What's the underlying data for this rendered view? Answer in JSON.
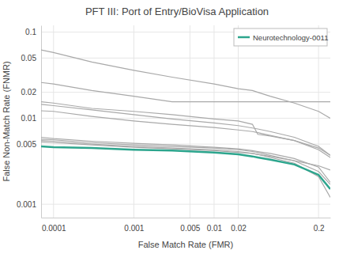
{
  "chart_data": {
    "type": "line",
    "title": "PFT III: Port of Entry/BioVisa Application",
    "x_label": "False Match Rate (FMR)",
    "y_label": "False Non-Match Rate (FNMR)",
    "log": true,
    "grid": true,
    "legend": "top-right",
    "xlim": [
      7e-05,
      0.28
    ],
    "ylim": [
      0.0007,
      0.12
    ],
    "xticks": [
      0.0001,
      0.001,
      0.005,
      0.01,
      0.02,
      0.2
    ],
    "yticks": [
      0.001,
      0.005,
      0.01,
      0.02,
      0.05,
      0.1
    ],
    "x": [
      7e-05,
      0.0001,
      0.0003,
      0.001,
      0.003,
      0.01,
      0.02,
      0.03,
      0.035,
      0.05,
      0.1,
      0.2,
      0.28
    ],
    "series": [
      {
        "color": "#a9a9a9",
        "values": [
          0.062,
          0.058,
          0.045,
          0.036,
          0.03,
          0.025,
          0.022,
          0.021,
          0.02,
          0.018,
          0.015,
          0.012,
          0.01
        ]
      },
      {
        "color": "#a9a9a9",
        "values": [
          0.026,
          0.025,
          0.021,
          0.018,
          0.0155,
          0.0155,
          0.0155,
          0.0155,
          0.0155,
          0.0155,
          0.0155,
          0.0155,
          0.0155
        ]
      },
      {
        "color": "#a9a9a9",
        "values": [
          0.0155,
          0.015,
          0.013,
          0.012,
          0.011,
          0.0098,
          0.0093,
          0.0085,
          0.0065,
          0.0062,
          0.0055,
          0.0045,
          0.0037
        ]
      },
      {
        "color": "#a9a9a9",
        "values": [
          0.0145,
          0.014,
          0.0125,
          0.011,
          0.0098,
          0.0088,
          0.0082,
          0.0077,
          0.0075,
          0.007,
          0.006,
          0.0047,
          0.0037
        ]
      },
      {
        "color": "#a9a9a9",
        "values": [
          0.0122,
          0.012,
          0.0105,
          0.0093,
          0.0085,
          0.0078,
          0.0073,
          0.007,
          0.0068,
          0.0063,
          0.0055,
          0.0043,
          0.0035
        ]
      },
      {
        "color": "#a9a9a9",
        "values": [
          0.006,
          0.0058,
          0.0054,
          0.0051,
          0.0049,
          0.0046,
          0.0044,
          0.0042,
          0.0041,
          0.0039,
          0.0034,
          0.0027,
          0.0018
        ]
      },
      {
        "color": "#a9a9a9",
        "values": [
          0.0057,
          0.0056,
          0.0052,
          0.0049,
          0.0047,
          0.0045,
          0.0043,
          0.0041,
          0.004,
          0.0037,
          0.0032,
          0.0024,
          0.0017
        ]
      },
      {
        "color": "#a9a9a9",
        "values": [
          0.0055,
          0.0054,
          0.005,
          0.0047,
          0.0045,
          0.0043,
          0.0041,
          0.0039,
          0.0038,
          0.0035,
          0.003,
          0.0021,
          0.0012
        ]
      },
      {
        "color": "#a9a9a9",
        "values": [
          0.0053,
          0.0052,
          0.0049,
          0.0046,
          0.0044,
          0.0042,
          0.004,
          0.0039,
          0.0038,
          0.0036,
          0.0032,
          0.0028,
          0.0025
        ]
      },
      {
        "name": "Neurotechnology-0011",
        "color": "#2ca58d",
        "values": [
          0.0047,
          0.0046,
          0.0045,
          0.0043,
          0.0042,
          0.004,
          0.0038,
          0.0036,
          0.0035,
          0.0033,
          0.0029,
          0.0022,
          0.0015
        ]
      }
    ]
  }
}
